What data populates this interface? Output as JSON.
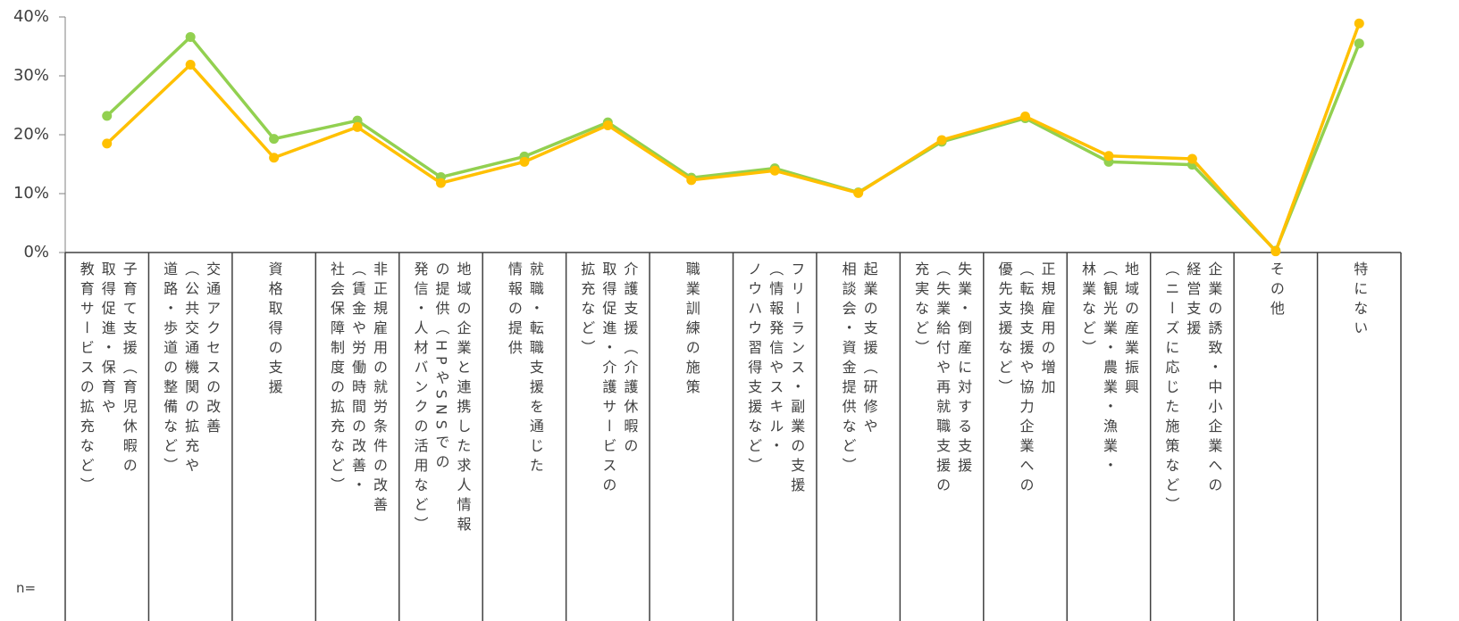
{
  "chart_data": {
    "type": "line",
    "categories": [
      "子育て支援（育児休暇の\n取得促進・保育や\n教育サービスの拡充など）",
      "交通アクセスの改善\n（公共交通機関の拡充や\n道路・歩道の整備など）",
      "資格取得の支援",
      "非正規雇用の就労条件の改善\n（賃金や労働時間の改善・\n社会保障制度の拡充など）",
      "地域の企業と連携した求人情報\nの提供（HPやSNSでの\n発信・人材バンクの活用など）",
      "就職・転職支援を通じた\n情報の提供",
      "介護支援（介護休暇の\n取得促進・介護サービスの\n拡充など）",
      "職業訓練の施策",
      "フリーランス・副業の支援\n（情報発信やスキル・\nノウハウ習得支援など）",
      "起業の支援（研修や\n相談会・資金提供など）",
      "失業・倒産に対する支援\n（失業給付や再就職支援の\n充実など）",
      "正規雇用の増加\n（転換支援や協力企業への\n優先支援など）",
      "地域の産業振興\n（観光業・農業・漁業・\n林業など）",
      "企業の誘致・中小企業への\n経営支援\n（ニーズに応じた施策など）",
      "その他",
      "特にない"
    ],
    "series": [
      {
        "color": "#92d050",
        "values": [
          23.2,
          36.6,
          19.3,
          22.4,
          12.8,
          16.3,
          22.1,
          12.7,
          14.3,
          10.2,
          18.8,
          22.8,
          15.4,
          14.9,
          0.3,
          35.5
        ]
      },
      {
        "color": "#ffc000",
        "values": [
          18.5,
          31.9,
          16.1,
          21.3,
          11.8,
          15.4,
          21.6,
          12.3,
          13.9,
          10.1,
          19.1,
          23.1,
          16.4,
          15.9,
          0.2,
          38.9
        ]
      }
    ],
    "ylim": [
      0,
      40
    ],
    "yticks": [
      {
        "value": 0,
        "label": "0%"
      },
      {
        "value": 10,
        "label": "10%"
      },
      {
        "value": 20,
        "label": "20%"
      },
      {
        "value": 30,
        "label": "30%"
      },
      {
        "value": 40,
        "label": "40%"
      }
    ],
    "note": "n="
  }
}
